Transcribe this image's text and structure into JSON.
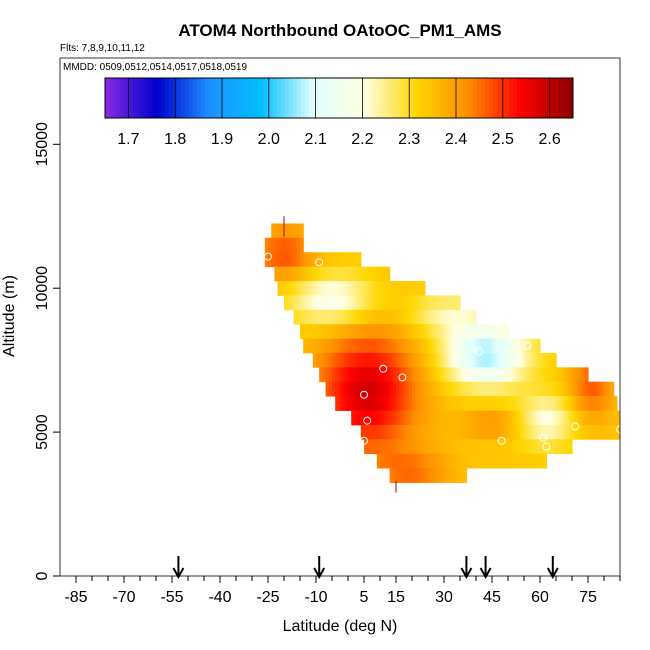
{
  "chart_data": {
    "type": "heatmap",
    "title": "ATOM4 Northbound OAtoOC_PM1_AMS",
    "flights_note": "Flts: 7,8,9,10,11,12",
    "mmdd_note": "MMDD: 0509,0512,0514,0517,0518,0519",
    "xlabel": "Latitude (deg N)",
    "ylabel": "Altitude (m)",
    "xlim": [
      -90,
      85
    ],
    "ylim": [
      0,
      18000
    ],
    "x_ticks": [
      -85,
      -70,
      -55,
      -40,
      -25,
      -10,
      5,
      15,
      30,
      45,
      60,
      75
    ],
    "y_ticks": [
      0,
      5000,
      10000,
      15000
    ],
    "colorbar": {
      "min": 1.65,
      "max": 2.65,
      "ticks": [
        1.7,
        1.8,
        1.9,
        2.0,
        2.1,
        2.2,
        2.3,
        2.4,
        2.5,
        2.6
      ],
      "tick_labels": [
        "1.7",
        "1.8",
        "1.9",
        "2.0",
        "2.1",
        "2.2",
        "2.3",
        "2.4",
        "2.5",
        "2.6"
      ],
      "colors": [
        "#8a2be2",
        "#0000cd",
        "#1e90ff",
        "#00bfff",
        "#e0ffff",
        "#ffffe0",
        "#ffd700",
        "#ff8c00",
        "#ff0000",
        "#8b0000"
      ]
    },
    "arrow_latitudes": [
      -53,
      -9,
      37,
      43,
      64
    ],
    "layers": [
      {
        "alt": 12000,
        "lat_min": -24,
        "lat_max": -14
      },
      {
        "alt": 11500,
        "lat_min": -26,
        "lat_max": -14
      },
      {
        "alt": 11000,
        "lat_min": -26,
        "lat_max": 4
      },
      {
        "alt": 10500,
        "lat_min": -23,
        "lat_max": 13
      },
      {
        "alt": 10000,
        "lat_min": -22,
        "lat_max": 24
      },
      {
        "alt": 9500,
        "lat_min": -20,
        "lat_max": 35
      },
      {
        "alt": 9000,
        "lat_min": -17,
        "lat_max": 40
      },
      {
        "alt": 8500,
        "lat_min": -15,
        "lat_max": 50
      },
      {
        "alt": 8000,
        "lat_min": -14,
        "lat_max": 60
      },
      {
        "alt": 7500,
        "lat_min": -11,
        "lat_max": 65
      },
      {
        "alt": 7000,
        "lat_min": -9,
        "lat_max": 75
      },
      {
        "alt": 6500,
        "lat_min": -7,
        "lat_max": 83
      },
      {
        "alt": 6000,
        "lat_min": -4,
        "lat_max": 84
      },
      {
        "alt": 5500,
        "lat_min": 1,
        "lat_max": 85
      },
      {
        "alt": 5000,
        "lat_min": 4,
        "lat_max": 85
      },
      {
        "alt": 4500,
        "lat_min": 5,
        "lat_max": 70
      },
      {
        "alt": 4000,
        "lat_min": 9,
        "lat_max": 62
      },
      {
        "alt": 3500,
        "lat_min": 13,
        "lat_max": 37
      }
    ],
    "points": [
      {
        "lat": -25,
        "alt": 11100
      },
      {
        "lat": -9,
        "alt": 10900
      },
      {
        "lat": -6,
        "alt": 9400
      },
      {
        "lat": 11,
        "alt": 7200
      },
      {
        "lat": 17,
        "alt": 6900
      },
      {
        "lat": 5,
        "alt": 6300
      },
      {
        "lat": 6,
        "alt": 5400
      },
      {
        "lat": 5,
        "alt": 4700
      },
      {
        "lat": 41,
        "alt": 7800
      },
      {
        "lat": 56,
        "alt": 8000
      },
      {
        "lat": 61,
        "alt": 8300
      },
      {
        "lat": 62,
        "alt": 5400
      },
      {
        "lat": 61,
        "alt": 4800
      },
      {
        "lat": 62,
        "alt": 4500
      },
      {
        "lat": 48,
        "alt": 4700
      },
      {
        "lat": 71,
        "alt": 5200
      },
      {
        "lat": 83,
        "alt": 7300
      },
      {
        "lat": 85,
        "alt": 5100
      }
    ]
  }
}
